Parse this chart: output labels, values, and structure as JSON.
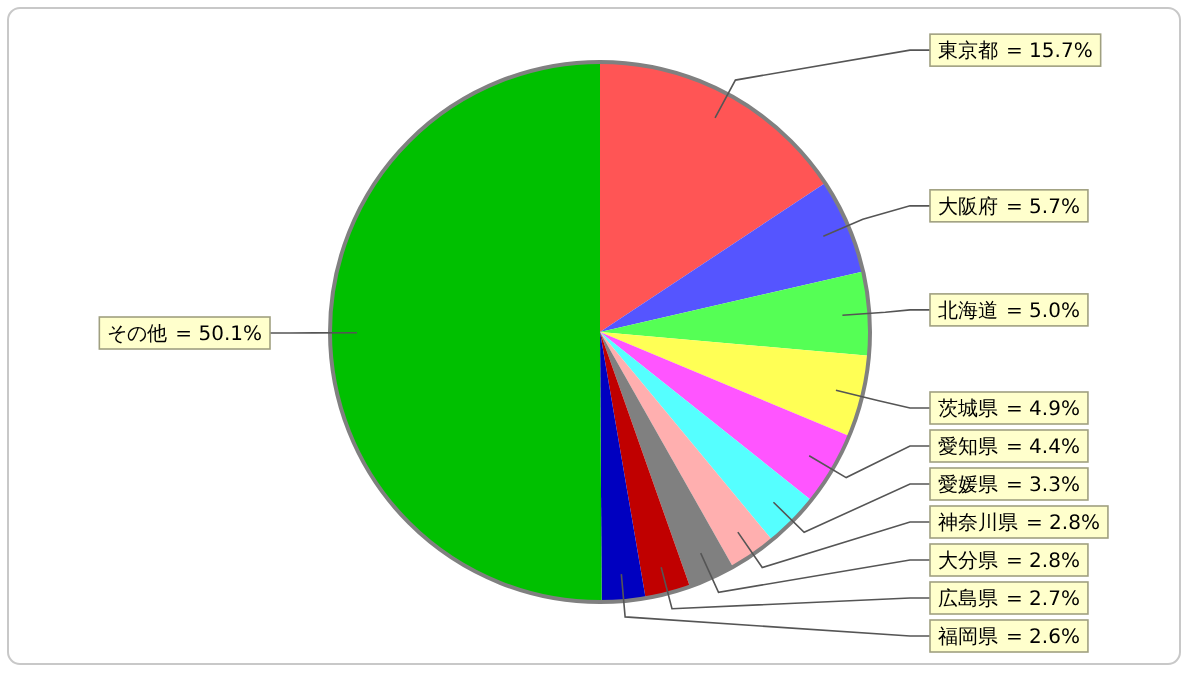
{
  "chart_data": {
    "type": "pie",
    "categories": [
      "東京都",
      "大阪府",
      "北海道",
      "茨城県",
      "愛知県",
      "愛媛県",
      "神奈川県",
      "大分県",
      "広島県",
      "福岡県",
      "その他"
    ],
    "values": [
      15.7,
      5.7,
      5.0,
      4.9,
      4.4,
      3.3,
      2.8,
      2.8,
      2.7,
      2.6,
      50.1
    ],
    "value_labels": [
      "= 15.7%",
      "= 5.7%",
      "= 5.0%",
      "= 4.9%",
      "= 4.4%",
      "= 3.3%",
      "= 2.8%",
      "= 2.8%",
      "= 2.7%",
      "= 2.6%",
      "= 50.1%"
    ],
    "colors": [
      "#ff5555",
      "#5555ff",
      "#55ff55",
      "#ffff55",
      "#ff55ff",
      "#55ffff",
      "#ffafaf",
      "#808080",
      "#c00000",
      "#0000c0",
      "#00c000"
    ]
  }
}
